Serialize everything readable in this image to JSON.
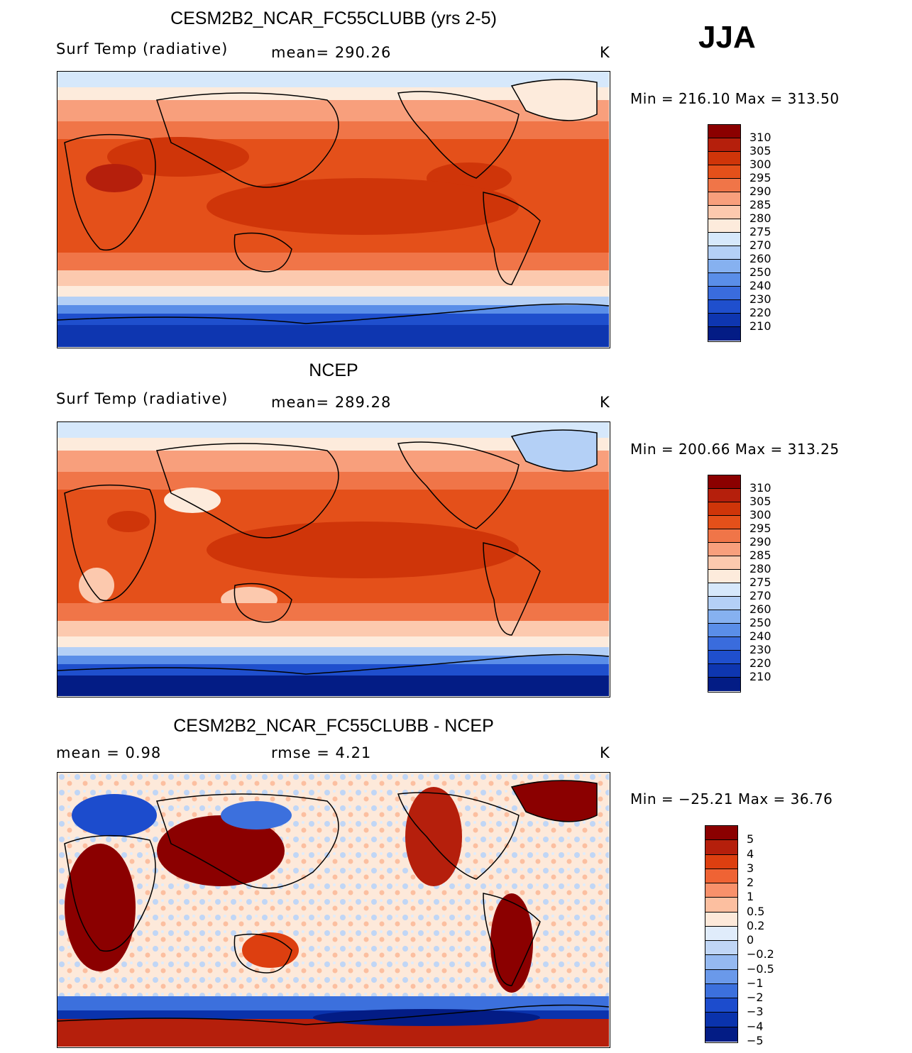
{
  "season": "JJA",
  "colors": {
    "temp_scale": [
      "#8b0000",
      "#b51f0c",
      "#cf3509",
      "#e4501a",
      "#f07548",
      "#f89f7c",
      "#fcc9ae",
      "#fdebdc",
      "#d6e8fb",
      "#b4d0f6",
      "#86b1f0",
      "#5a8ee8",
      "#3a6cdd",
      "#1f4fcd",
      "#0e36b0",
      "#031c85"
    ],
    "diff_scale": [
      "#8b0000",
      "#b51f0c",
      "#dd3f10",
      "#ef6334",
      "#f8916b",
      "#fcbfa0",
      "#fde9da",
      "#e0ecfb",
      "#c0d6f6",
      "#95b9f1",
      "#6a99ea",
      "#3c70dd",
      "#1c4ccd",
      "#0a33ad",
      "#031c85"
    ]
  },
  "panels": [
    {
      "title": "CESM2B2_NCAR_FC55CLUBB (yrs 2-5)",
      "left_label": "Surf Temp (radiative)",
      "mid_label": "mean=  290.26",
      "unit": "K",
      "minmax": "Min  =  216.10  Max  =  313.50",
      "colorbar_labels": [
        "310",
        "305",
        "300",
        "295",
        "290",
        "285",
        "280",
        "275",
        "270",
        "260",
        "250",
        "240",
        "230",
        "220",
        "210"
      ]
    },
    {
      "title": "NCEP",
      "left_label": "Surf Temp (radiative)",
      "mid_label": "mean=  289.28",
      "unit": "K",
      "minmax": "Min  =  200.66  Max  =  313.25",
      "colorbar_labels": [
        "310",
        "305",
        "300",
        "295",
        "290",
        "285",
        "280",
        "275",
        "270",
        "260",
        "250",
        "240",
        "230",
        "220",
        "210"
      ]
    },
    {
      "title": "CESM2B2_NCAR_FC55CLUBB - NCEP",
      "left_label": "mean  =     0.98",
      "mid_label": "rmse  =     4.21",
      "unit": "K",
      "minmax": "Min  =  −25.21  Max  =    36.76",
      "colorbar_labels": [
        "5",
        "4",
        "3",
        "2",
        "1",
        "0.5",
        "0.2",
        "0",
        "−0.2",
        "−0.5",
        "−1",
        "−2",
        "−3",
        "−4",
        "−5"
      ]
    }
  ]
}
